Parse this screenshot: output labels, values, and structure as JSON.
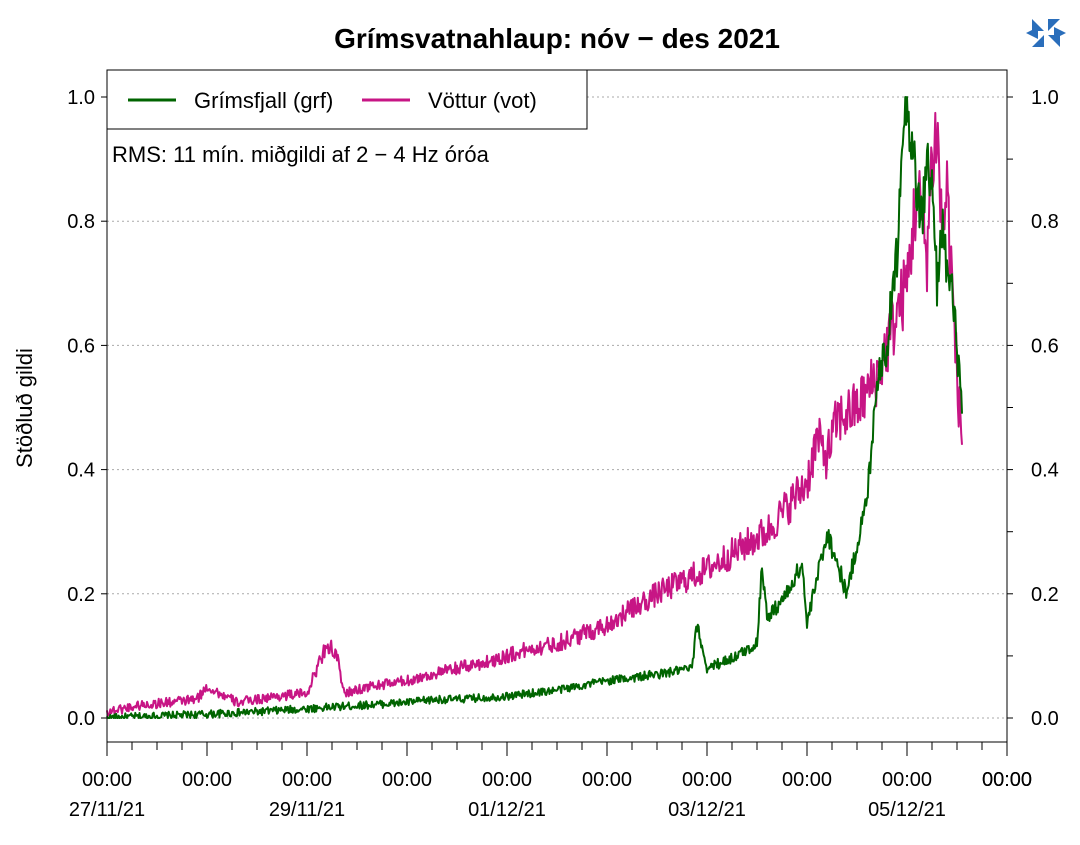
{
  "chart_data": {
    "type": "line",
    "title": "Grímsvatnahlaup: nóv − des 2021",
    "ylabel": "Stöðluð gildi",
    "annotation": "RMS: 11 mín. miðgildi af 2 − 4 Hz óróa",
    "ylim": [
      0,
      1.0
    ],
    "yticks": [
      "0.0",
      "0.2",
      "0.4",
      "0.6",
      "0.8",
      "1.0"
    ],
    "xlim_days": [
      0,
      9
    ],
    "xticks": [
      {
        "time": "00:00",
        "date": "27/11/21"
      },
      {
        "time": "00:00",
        "date": ""
      },
      {
        "time": "00:00",
        "date": "29/11/21"
      },
      {
        "time": "00:00",
        "date": ""
      },
      {
        "time": "00:00",
        "date": "01/12/21"
      },
      {
        "time": "00:00",
        "date": ""
      },
      {
        "time": "00:00",
        "date": "03/12/21"
      },
      {
        "time": "00:00",
        "date": ""
      },
      {
        "time": "00:00",
        "date": "05/12/21"
      },
      {
        "time": "00:00",
        "date": ""
      }
    ],
    "grid": true,
    "legend_position": "top-left",
    "series": [
      {
        "name": "Grímsfjall (grf)",
        "color": "#006400",
        "x": [
          0,
          0.5,
          1,
          1.5,
          2,
          2.5,
          3,
          3.3,
          3.5,
          4,
          4.5,
          5,
          5.5,
          5.85,
          5.9,
          6,
          6.3,
          6.5,
          6.55,
          6.6,
          6.8,
          6.95,
          7,
          7.2,
          7.4,
          7.5,
          7.6,
          7.65,
          7.7,
          7.8,
          7.9,
          7.95,
          8,
          8.05,
          8.1,
          8.15,
          8.2,
          8.25,
          8.3,
          8.35,
          8.4,
          8.45,
          8.5,
          8.55
        ],
        "y": [
          0.0,
          0.003,
          0.006,
          0.01,
          0.015,
          0.02,
          0.025,
          0.03,
          0.03,
          0.035,
          0.045,
          0.06,
          0.07,
          0.08,
          0.15,
          0.08,
          0.1,
          0.12,
          0.25,
          0.16,
          0.2,
          0.25,
          0.15,
          0.3,
          0.2,
          0.28,
          0.35,
          0.45,
          0.55,
          0.6,
          0.75,
          0.95,
          1.0,
          0.92,
          0.85,
          0.8,
          0.9,
          0.85,
          0.7,
          0.8,
          0.72,
          0.68,
          0.6,
          0.49
        ]
      },
      {
        "name": "Vöttur (vot)",
        "color": "#c71585",
        "x": [
          0,
          0.3,
          0.6,
          0.9,
          1.0,
          1.3,
          1.7,
          2.0,
          2.1,
          2.2,
          2.3,
          2.35,
          2.4,
          2.6,
          3.0,
          3.5,
          3.8,
          4.0,
          4.2,
          4.5,
          5.0,
          5.5,
          6.0,
          6.5,
          6.6,
          6.8,
          7.0,
          7.1,
          7.2,
          7.3,
          7.5,
          7.7,
          7.8,
          8.0,
          8.1,
          8.2,
          8.25,
          8.3,
          8.35,
          8.4,
          8.45,
          8.5,
          8.55
        ],
        "y": [
          0.01,
          0.02,
          0.025,
          0.03,
          0.05,
          0.025,
          0.035,
          0.04,
          0.08,
          0.12,
          0.1,
          0.05,
          0.04,
          0.05,
          0.06,
          0.08,
          0.09,
          0.1,
          0.11,
          0.12,
          0.15,
          0.2,
          0.24,
          0.29,
          0.3,
          0.34,
          0.38,
          0.45,
          0.42,
          0.48,
          0.5,
          0.55,
          0.6,
          0.7,
          0.85,
          0.75,
          0.9,
          0.95,
          0.78,
          0.85,
          0.7,
          0.55,
          0.44
        ]
      }
    ]
  }
}
